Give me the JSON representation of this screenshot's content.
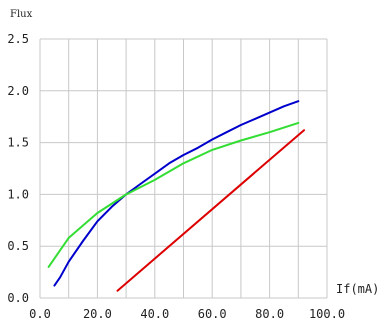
{
  "chart_data": {
    "type": "line",
    "ylabel": "Flux",
    "xlabel": "If(mA)",
    "xlim": [
      0,
      100
    ],
    "ylim": [
      0,
      2.5
    ],
    "grid": true,
    "x_ticks": [
      "0.0",
      "20.0",
      "40.0",
      "60.0",
      "80.0",
      "100.0"
    ],
    "y_ticks": [
      "0.0",
      "0.5",
      "1.0",
      "1.5",
      "2.0",
      "2.5"
    ],
    "series": [
      {
        "color": "#0000cc",
        "x": [
          5,
          7,
          10,
          15,
          20,
          25,
          30,
          35,
          40,
          45,
          50,
          55,
          60,
          65,
          70,
          75,
          80,
          85,
          90
        ],
        "y": [
          0.12,
          0.2,
          0.35,
          0.55,
          0.74,
          0.88,
          1.0,
          1.1,
          1.2,
          1.3,
          1.38,
          1.45,
          1.53,
          1.6,
          1.67,
          1.73,
          1.79,
          1.85,
          1.9
        ]
      },
      {
        "color": "#33dd33",
        "x": [
          3,
          10,
          20,
          30,
          40,
          50,
          60,
          70,
          80,
          90
        ],
        "y": [
          0.3,
          0.58,
          0.82,
          1.0,
          1.14,
          1.3,
          1.43,
          1.52,
          1.6,
          1.69
        ]
      },
      {
        "color": "#dd0000",
        "x": [
          27,
          92
        ],
        "y": [
          0.07,
          1.62
        ]
      }
    ]
  }
}
